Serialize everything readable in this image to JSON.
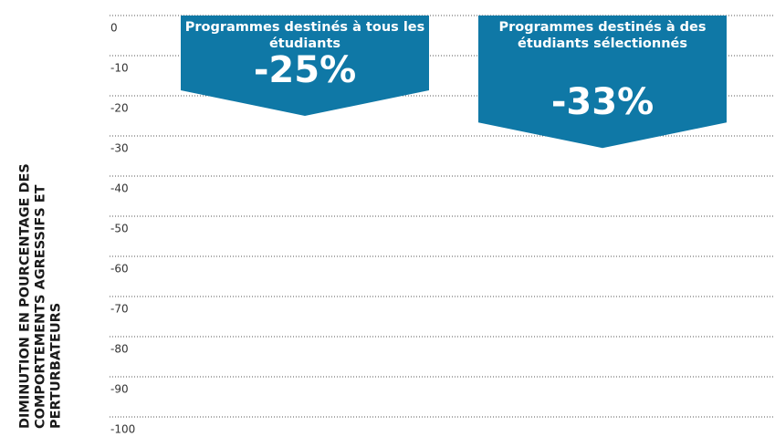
{
  "chart_data": {
    "type": "bar",
    "y_label": "DIMINUTION EN POURCENTAGE DES COMPORTEMENTS AGRESSIFS ET PERTURBATEURS",
    "categories": [
      "Programmes destinés à tous les étudiants",
      "Programmes destinés à des étudiants sélectionnés"
    ],
    "values": [
      -25,
      -33
    ],
    "value_labels": [
      "-25%",
      "-33%"
    ],
    "color": "#0f78a6",
    "ylim": [
      -100,
      0
    ],
    "yticks": [
      0,
      -10,
      -20,
      -30,
      -40,
      -50,
      -60,
      -70,
      -80,
      -90,
      -100
    ],
    "grid": true
  }
}
